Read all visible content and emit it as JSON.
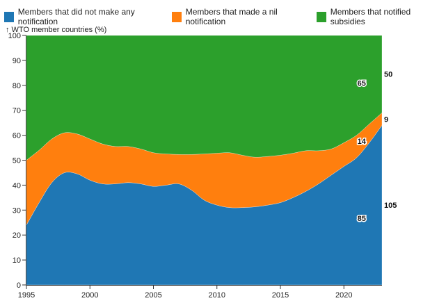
{
  "chart_data": {
    "type": "area",
    "stacked": true,
    "ylabel": "↑ WTO member countries (%)",
    "xlim": [
      1995,
      2023
    ],
    "ylim": [
      0,
      100
    ],
    "xticks": [
      1995,
      2000,
      2005,
      2010,
      2015,
      2020
    ],
    "yticks": [
      0,
      10,
      20,
      30,
      40,
      50,
      60,
      70,
      80,
      90,
      100
    ],
    "grid": false,
    "legend_position": "top",
    "x": [
      1995,
      1996,
      1997,
      1998,
      1999,
      2000,
      2001,
      2002,
      2003,
      2004,
      2005,
      2006,
      2007,
      2008,
      2009,
      2010,
      2011,
      2012,
      2013,
      2014,
      2015,
      2016,
      2017,
      2018,
      2019,
      2020,
      2021,
      2022,
      2023
    ],
    "series": [
      {
        "name": "Members that did not make any notification",
        "color": "#1f77b4",
        "values": [
          24,
          33,
          41,
          45,
          44.5,
          42,
          40.5,
          40.5,
          41,
          40.5,
          39.5,
          40,
          40.5,
          38,
          34,
          32,
          31,
          31,
          31.3,
          32,
          33,
          35,
          37.5,
          40.5,
          44,
          47.5,
          51,
          57,
          64
        ]
      },
      {
        "name": "Members that made a nil notification",
        "color": "#ff7f0e",
        "values": [
          26,
          21,
          17.5,
          16,
          16,
          16.5,
          16,
          15,
          14.5,
          14,
          13.5,
          12.5,
          11.8,
          14.3,
          18.5,
          20.8,
          22,
          21,
          19.9,
          19.5,
          19,
          17.8,
          16.3,
          13.3,
          10.5,
          9.5,
          9,
          7.5,
          5
        ]
      },
      {
        "name": "Members that notified subsidies",
        "color": "#2ca02c",
        "values": [
          50,
          46,
          41.5,
          39,
          39.5,
          41.5,
          43.5,
          44.5,
          44.5,
          45.5,
          47,
          47.5,
          47.7,
          47.7,
          47.5,
          47.2,
          47,
          48,
          48.8,
          48.5,
          48,
          47.2,
          46.2,
          46.2,
          45.5,
          43,
          40,
          35.5,
          31
        ]
      }
    ],
    "annotations": [
      {
        "series": 0,
        "x": 2021.4,
        "text": "85"
      },
      {
        "series": 1,
        "x": 2021.4,
        "text": "14"
      },
      {
        "series": 2,
        "x": 2021.4,
        "text": "65"
      },
      {
        "series": 0,
        "x": 2023,
        "text": "105",
        "end": true
      },
      {
        "series": 1,
        "x": 2023,
        "text": "9",
        "end": true
      },
      {
        "series": 2,
        "x": 2023,
        "text": "50",
        "end": true
      }
    ]
  }
}
